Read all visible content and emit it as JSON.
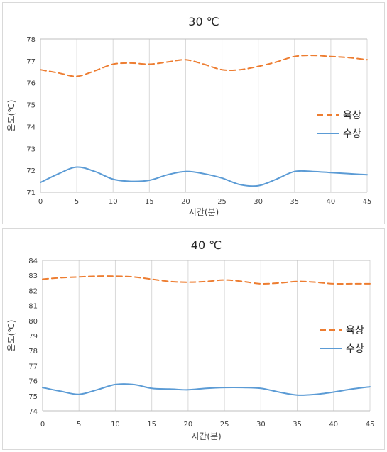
{
  "chart_data": [
    {
      "type": "line",
      "title": "30 ℃",
      "xlabel": "시간(분)",
      "ylabel": "온도(℃)",
      "xlim": [
        0,
        45
      ],
      "ylim": [
        71,
        78
      ],
      "xticks": [
        0,
        5,
        10,
        15,
        20,
        25,
        30,
        35,
        40,
        45
      ],
      "yticks": [
        71,
        72,
        73,
        74,
        75,
        76,
        77,
        78
      ],
      "grid": "vertical",
      "legend": "right",
      "series": [
        {
          "name": "육상",
          "color": "#ED7D31",
          "style": "dashed",
          "x": [
            0,
            2.5,
            5,
            7.5,
            10,
            12.5,
            15,
            17.5,
            20,
            22.5,
            25,
            27.5,
            30,
            32.5,
            35,
            37.5,
            40,
            42.5,
            45
          ],
          "y": [
            76.6,
            76.45,
            76.3,
            76.55,
            76.85,
            76.9,
            76.85,
            76.95,
            77.05,
            76.85,
            76.6,
            76.6,
            76.75,
            76.95,
            77.2,
            77.25,
            77.2,
            77.15,
            77.05
          ]
        },
        {
          "name": "수상",
          "color": "#5B9BD5",
          "style": "solid",
          "x": [
            0,
            2.5,
            5,
            7.5,
            10,
            12.5,
            15,
            17.5,
            20,
            22.5,
            25,
            27.5,
            30,
            32.5,
            35,
            37.5,
            40,
            42.5,
            45
          ],
          "y": [
            71.45,
            71.85,
            72.15,
            71.95,
            71.6,
            71.5,
            71.55,
            71.8,
            71.95,
            71.85,
            71.65,
            71.35,
            71.3,
            71.6,
            71.95,
            71.95,
            71.9,
            71.85,
            71.8
          ]
        }
      ]
    },
    {
      "type": "line",
      "title": "40 ℃",
      "xlabel": "시간(분)",
      "ylabel": "온도(℃)",
      "xlim": [
        0,
        45
      ],
      "ylim": [
        74,
        84
      ],
      "xticks": [
        0,
        5,
        10,
        15,
        20,
        25,
        30,
        35,
        40,
        45
      ],
      "yticks": [
        74,
        75,
        76,
        77,
        78,
        79,
        80,
        81,
        82,
        83,
        84
      ],
      "grid": "vertical",
      "legend": "right",
      "series": [
        {
          "name": "육상",
          "color": "#ED7D31",
          "style": "dashed",
          "x": [
            0,
            2.5,
            5,
            7.5,
            10,
            12.5,
            15,
            17.5,
            20,
            22.5,
            25,
            27.5,
            30,
            32.5,
            35,
            37.5,
            40,
            42.5,
            45
          ],
          "y": [
            82.75,
            82.85,
            82.9,
            82.95,
            82.95,
            82.9,
            82.75,
            82.6,
            82.55,
            82.6,
            82.7,
            82.6,
            82.45,
            82.5,
            82.6,
            82.55,
            82.45,
            82.45,
            82.45
          ]
        },
        {
          "name": "수상",
          "color": "#5B9BD5",
          "style": "solid",
          "x": [
            0,
            2.5,
            5,
            7.5,
            10,
            12.5,
            15,
            17.5,
            20,
            22.5,
            25,
            27.5,
            30,
            32.5,
            35,
            37.5,
            40,
            42.5,
            45
          ],
          "y": [
            75.55,
            75.3,
            75.1,
            75.4,
            75.75,
            75.75,
            75.5,
            75.45,
            75.4,
            75.5,
            75.55,
            75.55,
            75.5,
            75.25,
            75.05,
            75.1,
            75.25,
            75.45,
            75.6
          ]
        }
      ]
    }
  ]
}
